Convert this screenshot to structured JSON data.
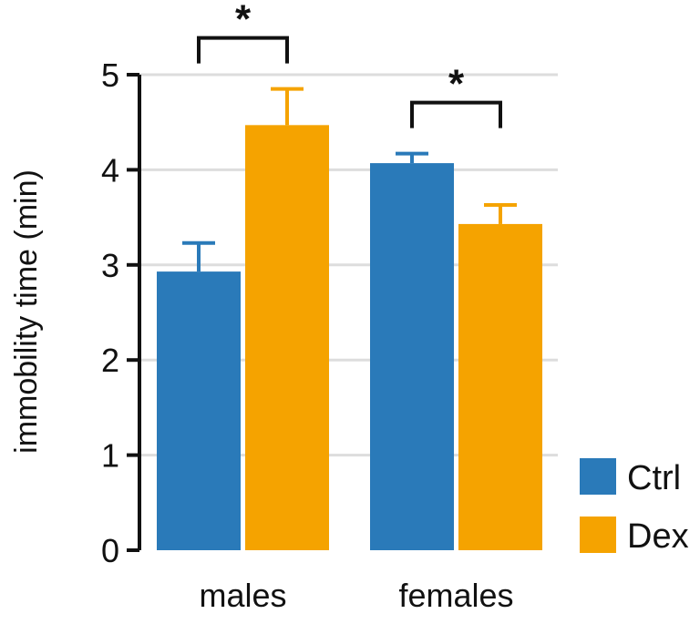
{
  "chart_data": {
    "type": "bar",
    "categories": [
      "males",
      "females"
    ],
    "series": [
      {
        "name": "Ctrl",
        "values": [
          2.93,
          4.07
        ],
        "errors": [
          0.3,
          0.1
        ]
      },
      {
        "name": "Dex",
        "values": [
          4.47,
          3.43
        ],
        "errors": [
          0.38,
          0.2
        ]
      }
    ],
    "title": "",
    "xlabel": "",
    "ylabel": "immobility time (min)",
    "ylim": [
      0,
      5
    ],
    "yticks": [
      0,
      1,
      2,
      3,
      4,
      5
    ],
    "ytick_labels": [
      "0",
      "1",
      "2",
      "3",
      "4",
      "5"
    ],
    "grid": true,
    "legend_position": "bottom-right",
    "significance": [
      {
        "category": "males",
        "label": "*"
      },
      {
        "category": "females",
        "label": "*"
      }
    ]
  },
  "colors": {
    "Ctrl": "#2a7ab9",
    "Dex": "#f5a300",
    "grid": "#dddddd",
    "axis": "#111111"
  }
}
